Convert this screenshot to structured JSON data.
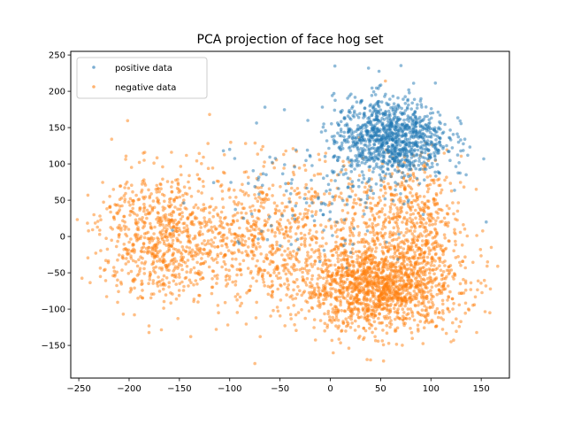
{
  "chart_data": {
    "type": "scatter",
    "title": "PCA projection of face hog set",
    "xlabel": "",
    "ylabel": "",
    "xlim": [
      -258,
      178
    ],
    "ylim": [
      -195,
      255
    ],
    "xticks": [
      -250,
      -200,
      -150,
      -100,
      -50,
      0,
      50,
      100,
      150
    ],
    "yticks": [
      -150,
      -100,
      -50,
      0,
      50,
      100,
      150,
      200,
      250
    ],
    "grid": false,
    "legend": {
      "placement": "top-left",
      "entries": [
        "positive data",
        "negative data"
      ]
    },
    "colors": {
      "positive": "#1f77b4",
      "negative": "#ff7f0e"
    },
    "series": [
      {
        "name": "negative data",
        "clusters": [
          {
            "center": [
              50,
              -70
            ],
            "spread": [
              40,
              30
            ],
            "count": 1500
          },
          {
            "center": [
              -170,
              0
            ],
            "spread": [
              30,
              45
            ],
            "count": 650
          },
          {
            "center": [
              -60,
              0
            ],
            "spread": [
              60,
              50
            ],
            "count": 900
          },
          {
            "center": [
              80,
              20
            ],
            "spread": [
              25,
              45
            ],
            "count": 500
          }
        ],
        "points": [
          [
            -235,
            30
          ],
          [
            -120,
            168
          ],
          [
            -75,
            -175
          ],
          [
            120,
            -145
          ],
          [
            145,
            65
          ],
          [
            160,
            -15
          ],
          [
            -185,
            105
          ],
          [
            40,
            -170
          ]
        ]
      },
      {
        "name": "positive data",
        "clusters": [
          {
            "center": [
              60,
              135
            ],
            "spread": [
              28,
              28
            ],
            "count": 1100
          },
          {
            "center": [
              -20,
              60
            ],
            "spread": [
              50,
              45
            ],
            "count": 120
          }
        ],
        "points": [
          [
            38,
            232
          ],
          [
            -65,
            178
          ],
          [
            155,
            20
          ],
          [
            135,
            85
          ],
          [
            -100,
            120
          ]
        ]
      }
    ]
  }
}
